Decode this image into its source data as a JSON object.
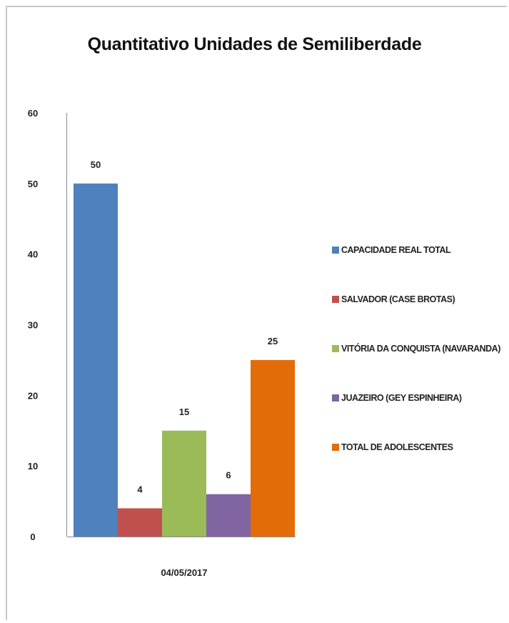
{
  "chart_data": {
    "type": "bar",
    "title": "Quantitativo Unidades de Semiliberdade",
    "categories": [
      "04/05/2017"
    ],
    "series": [
      {
        "name": "CAPACIDADE REAL TOTAL",
        "values": [
          50
        ],
        "color": "#4f81bd"
      },
      {
        "name": "SALVADOR (CASE BROTAS)",
        "values": [
          4
        ],
        "color": "#c0504d"
      },
      {
        "name": "VITÓRIA DA CONQUISTA (NAVARANDA)",
        "values": [
          15
        ],
        "color": "#9bbb59"
      },
      {
        "name": "JUAZEIRO (GEY ESPINHEIRA)",
        "values": [
          6
        ],
        "color": "#8064a2"
      },
      {
        "name": "TOTAL DE ADOLESCENTES",
        "values": [
          25
        ],
        "color": "#e36c09"
      }
    ],
    "yticks": [
      "0",
      "10",
      "20",
      "30",
      "40",
      "50",
      "60"
    ],
    "ylim": [
      0,
      60
    ],
    "xlabel": "",
    "ylabel": "",
    "grid": false,
    "legend_position": "right",
    "data_labels": true
  }
}
